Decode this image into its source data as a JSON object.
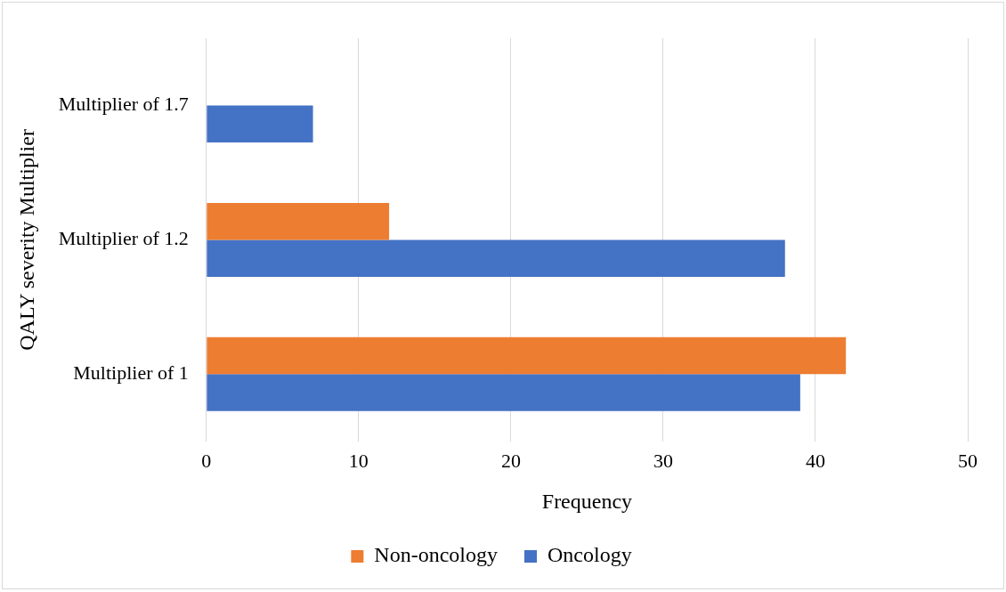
{
  "chart_data": {
    "type": "bar",
    "orientation": "horizontal",
    "xlabel": "Frequency",
    "ylabel": "QALY severity Multiplier",
    "categories": [
      "Multiplier of 1.7",
      "Multiplier of 1.2",
      "Multiplier of 1"
    ],
    "series": [
      {
        "name": "Non-oncology",
        "color": "#ed7d31",
        "values": [
          null,
          12,
          42
        ]
      },
      {
        "name": "Oncology",
        "color": "#4472c4",
        "values": [
          7,
          38,
          39
        ]
      }
    ],
    "xlim": [
      0,
      50
    ],
    "xticks": [
      0,
      10,
      20,
      30,
      40,
      50
    ],
    "grid": "x",
    "legend": "bottom"
  }
}
